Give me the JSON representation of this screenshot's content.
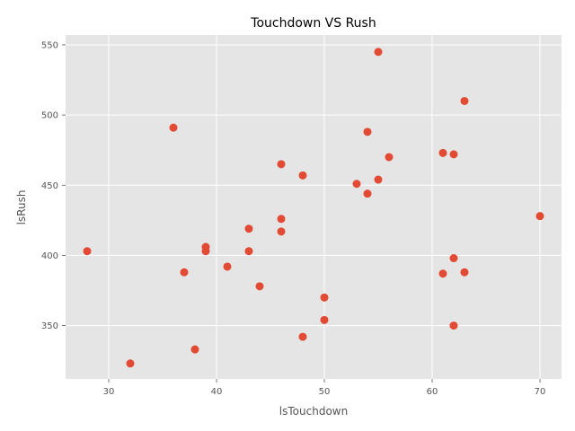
{
  "chart_data": {
    "type": "scatter",
    "title": "Touchdown VS Rush",
    "xlabel": "lsTouchdown",
    "ylabel": "lsRush",
    "xlim": [
      26,
      72
    ],
    "ylim": [
      312,
      557
    ],
    "xticks": [
      30,
      40,
      50,
      60,
      70
    ],
    "yticks": [
      350,
      400,
      450,
      500,
      550
    ],
    "grid": true,
    "style": "ggplot",
    "colors": {
      "background": "#E5E5E5",
      "grid": "#FFFFFF",
      "marker": "#E24A33"
    },
    "points": [
      {
        "x": 55,
        "y": 545
      },
      {
        "x": 63,
        "y": 510
      },
      {
        "x": 36,
        "y": 491
      },
      {
        "x": 54,
        "y": 488
      },
      {
        "x": 61,
        "y": 473
      },
      {
        "x": 62,
        "y": 472
      },
      {
        "x": 56,
        "y": 470
      },
      {
        "x": 46,
        "y": 465
      },
      {
        "x": 48,
        "y": 457
      },
      {
        "x": 55,
        "y": 454
      },
      {
        "x": 53,
        "y": 451
      },
      {
        "x": 54,
        "y": 444
      },
      {
        "x": 70,
        "y": 428
      },
      {
        "x": 46,
        "y": 426
      },
      {
        "x": 43,
        "y": 419
      },
      {
        "x": 46,
        "y": 417
      },
      {
        "x": 39,
        "y": 406
      },
      {
        "x": 28,
        "y": 403
      },
      {
        "x": 39,
        "y": 403
      },
      {
        "x": 43,
        "y": 403
      },
      {
        "x": 62,
        "y": 398
      },
      {
        "x": 41,
        "y": 392
      },
      {
        "x": 37,
        "y": 388
      },
      {
        "x": 63,
        "y": 388
      },
      {
        "x": 61,
        "y": 387
      },
      {
        "x": 44,
        "y": 378
      },
      {
        "x": 50,
        "y": 370
      },
      {
        "x": 50,
        "y": 354
      },
      {
        "x": 62,
        "y": 350
      },
      {
        "x": 48,
        "y": 342
      },
      {
        "x": 38,
        "y": 333
      },
      {
        "x": 32,
        "y": 323
      }
    ]
  }
}
